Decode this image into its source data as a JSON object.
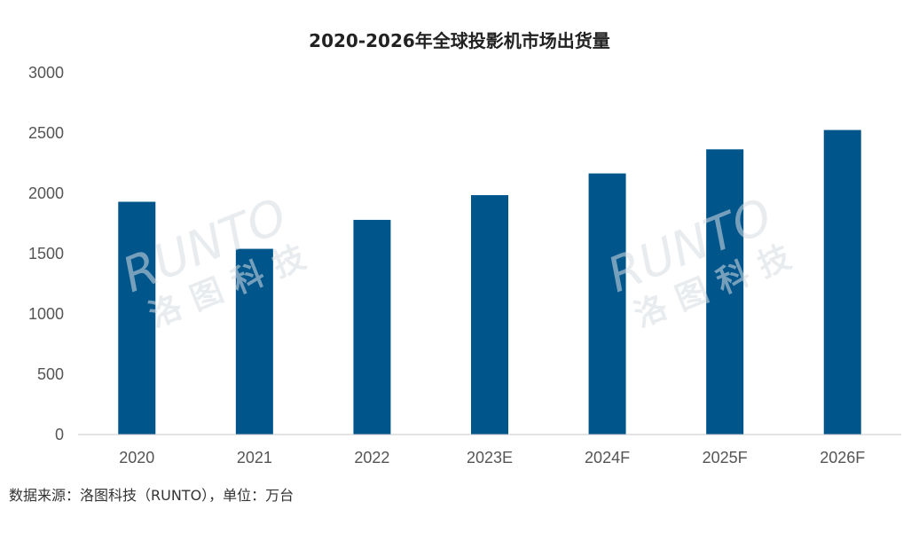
{
  "chart_data": {
    "type": "bar",
    "title": "2020-2026年全球投影机市场出货量",
    "categories": [
      "2020",
      "2021",
      "2022",
      "2023E",
      "2024F",
      "2025F",
      "2026F"
    ],
    "values": [
      1930,
      1540,
      1780,
      1985,
      2165,
      2365,
      2525
    ],
    "ylim": [
      0,
      3000
    ],
    "yticks": [
      0,
      500,
      1000,
      1500,
      2000,
      2500,
      3000
    ],
    "bar_color": "#00558b",
    "grid": false,
    "legend": "none",
    "xlabel": "",
    "ylabel": ""
  },
  "watermark": {
    "brand": "RUNTO",
    "name": "洛图科技"
  },
  "source_note": "数据来源：洛图科技（RUNTO），单位：万台"
}
